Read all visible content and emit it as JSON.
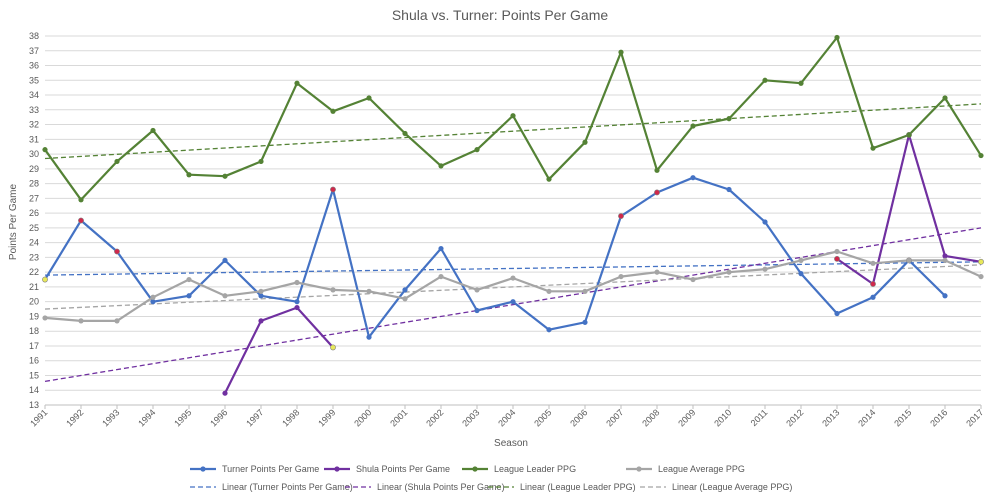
{
  "chart_data": {
    "type": "line",
    "title": "Shula vs. Turner: Points Per Game",
    "xlabel": "Season",
    "ylabel": "Points Per Game",
    "ylim": [
      13,
      38
    ],
    "ystep": 1,
    "grid": true,
    "legend_position": "bottom",
    "categories": [
      "1991",
      "1992",
      "1993",
      "1994",
      "1995",
      "1996",
      "1997",
      "1998",
      "1999",
      "2000",
      "2001",
      "2002",
      "2003",
      "2004",
      "2005",
      "2006",
      "2007",
      "2008",
      "2009",
      "2010",
      "2011",
      "2012",
      "2013",
      "2014",
      "2015",
      "2016",
      "2017"
    ],
    "series": [
      {
        "name": "Turner Points Per Game",
        "color": "#4472C4",
        "values": [
          21.5,
          25.5,
          23.4,
          20.0,
          20.4,
          22.8,
          20.4,
          20.0,
          27.6,
          17.6,
          20.8,
          23.6,
          19.4,
          20.0,
          18.1,
          18.6,
          25.8,
          27.4,
          28.4,
          27.6,
          25.4,
          21.9,
          19.2,
          20.3,
          22.8,
          20.4,
          null
        ],
        "highlight": {
          "0": "#e8e85a",
          "1": "#d0284c",
          "2": "#d0284c",
          "8": "#d0284c",
          "16": "#d0284c",
          "17": "#d0284c",
          "24": "#d0284c"
        }
      },
      {
        "name": "Shula Points Per Game",
        "color": "#7030A0",
        "values": [
          null,
          null,
          null,
          null,
          null,
          13.8,
          18.7,
          19.6,
          16.9,
          null,
          null,
          null,
          null,
          null,
          null,
          null,
          null,
          null,
          null,
          null,
          null,
          null,
          22.9,
          21.2,
          31.3,
          23.1,
          22.7
        ],
        "highlight": {
          "8": "#e8e85a",
          "22": "#d0284c",
          "23": "#d0284c",
          "24": "#d0284c",
          "26": "#e8e85a"
        }
      },
      {
        "name": "League Leader PPG",
        "color": "#548235",
        "values": [
          30.3,
          26.9,
          29.5,
          31.6,
          28.6,
          28.5,
          29.5,
          34.8,
          32.9,
          33.8,
          31.4,
          29.2,
          30.3,
          32.6,
          28.3,
          30.8,
          36.9,
          28.9,
          31.9,
          32.4,
          35.0,
          34.8,
          37.9,
          30.4,
          31.3,
          33.8,
          29.9
        ]
      },
      {
        "name": "League Average PPG",
        "color": "#A5A5A5",
        "values": [
          18.9,
          18.7,
          18.7,
          20.3,
          21.5,
          20.4,
          20.7,
          21.3,
          20.8,
          20.7,
          20.2,
          21.7,
          20.8,
          21.6,
          20.7,
          20.7,
          21.7,
          22.0,
          21.5,
          22.0,
          22.2,
          22.8,
          23.4,
          22.6,
          22.8,
          22.8,
          21.7
        ]
      }
    ],
    "trendlines": [
      {
        "name": "Linear (Turner Points Per Game)",
        "color": "#4472C4",
        "start": [
          1991,
          21.8
        ],
        "end": [
          2017,
          22.7
        ]
      },
      {
        "name": "Linear (Shula Points Per Game)",
        "color": "#7030A0",
        "start": [
          1991,
          14.6
        ],
        "end": [
          2017,
          25.0
        ]
      },
      {
        "name": "Linear (League Leader PPG)",
        "color": "#548235",
        "start": [
          1991,
          29.7
        ],
        "end": [
          2017,
          33.4
        ]
      },
      {
        "name": "Linear (League Average PPG)",
        "color": "#A5A5A5",
        "start": [
          1991,
          19.5
        ],
        "end": [
          2017,
          22.5
        ]
      }
    ]
  }
}
